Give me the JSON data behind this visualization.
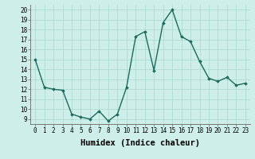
{
  "x": [
    0,
    1,
    2,
    3,
    4,
    5,
    6,
    7,
    8,
    9,
    10,
    11,
    12,
    13,
    14,
    15,
    16,
    17,
    18,
    19,
    20,
    21,
    22,
    23
  ],
  "y": [
    15,
    12.2,
    12,
    11.9,
    9.5,
    9.2,
    9.0,
    9.8,
    8.8,
    9.5,
    12.2,
    17.3,
    17.8,
    13.9,
    18.7,
    20,
    17.3,
    16.8,
    14.8,
    13.1,
    12.8,
    13.2,
    12.4,
    12.6
  ],
  "line_color": "#1a6b5a",
  "marker": "D",
  "marker_size": 1.8,
  "background_color": "#ceeee9",
  "grid_color": "#aad6cc",
  "xlabel": "Humidex (Indice chaleur)",
  "xlim": [
    -0.5,
    23.5
  ],
  "ylim": [
    8.5,
    20.5
  ],
  "yticks": [
    9,
    10,
    11,
    12,
    13,
    14,
    15,
    16,
    17,
    18,
    19,
    20
  ],
  "xticks": [
    0,
    1,
    2,
    3,
    4,
    5,
    6,
    7,
    8,
    9,
    10,
    11,
    12,
    13,
    14,
    15,
    16,
    17,
    18,
    19,
    20,
    21,
    22,
    23
  ],
  "linewidth": 1.0,
  "xlabel_fontsize": 7.5,
  "tick_fontsize": 5.5
}
